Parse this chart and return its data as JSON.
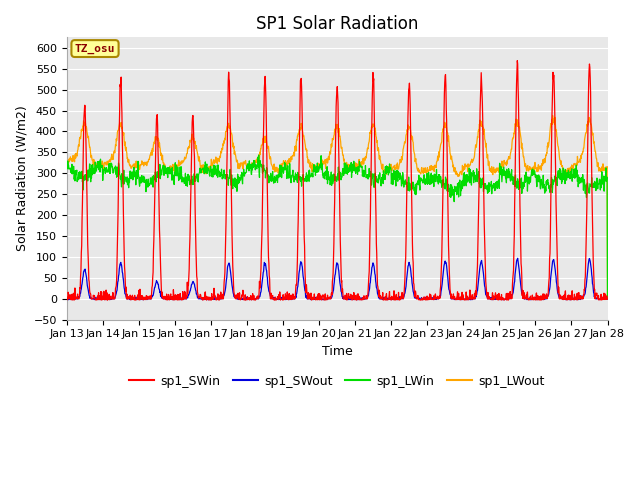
{
  "title": "SP1 Solar Radiation",
  "xlabel": "Time",
  "ylabel": "Solar Radiation (W/m2)",
  "ylim": [
    -50,
    625
  ],
  "yticks": [
    -50,
    0,
    50,
    100,
    150,
    200,
    250,
    300,
    350,
    400,
    450,
    500,
    550,
    600
  ],
  "xstart_day": 13,
  "xend_day": 28,
  "n_days": 15,
  "colors": {
    "SWin": "#FF0000",
    "SWout": "#0000DD",
    "LWin": "#00DD00",
    "LWout": "#FFA500"
  },
  "legend_labels": [
    "sp1_SWin",
    "sp1_SWout",
    "sp1_LWin",
    "sp1_LWout"
  ],
  "tz_label": "TZ_osu",
  "fig_bg": "#FFFFFF",
  "plot_bg": "#E8E8E8",
  "grid_color": "#FFFFFF",
  "title_fontsize": 12,
  "axis_fontsize": 9,
  "tick_fontsize": 8,
  "legend_fontsize": 9,
  "day_peaks_SWin": [
    460,
    525,
    435,
    435,
    535,
    530,
    530,
    510,
    530,
    515,
    535,
    535,
    555,
    555,
    565
  ],
  "day_peaks_SWout": [
    70,
    85,
    40,
    40,
    85,
    85,
    85,
    85,
    85,
    85,
    90,
    90,
    95,
    95,
    95
  ],
  "LWin_base": [
    305,
    300,
    290,
    295,
    295,
    305,
    295,
    300,
    300,
    280,
    275,
    280,
    290,
    285,
    280
  ],
  "LWout_base": [
    325,
    320,
    315,
    315,
    325,
    315,
    320,
    320,
    315,
    310,
    305,
    310,
    315,
    310,
    315
  ],
  "LWout_peaks": [
    420,
    415,
    385,
    385,
    415,
    380,
    410,
    410,
    415,
    410,
    415,
    420,
    425,
    430,
    430
  ]
}
